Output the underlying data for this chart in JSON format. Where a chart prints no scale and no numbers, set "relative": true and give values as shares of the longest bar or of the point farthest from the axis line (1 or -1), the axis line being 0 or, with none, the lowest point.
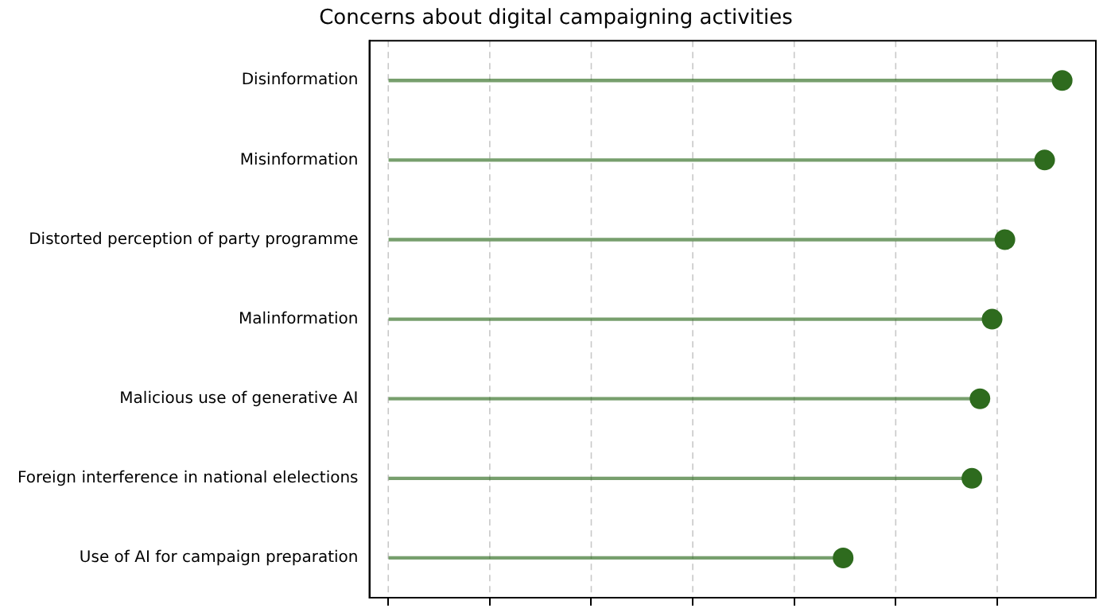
{
  "chart_data": {
    "type": "lollipop",
    "title": "Concerns about digital campaigning activities",
    "relative": true,
    "orientation": "horizontal",
    "grid": "x",
    "marker": "circle",
    "tick_labels": "y",
    "categories": [
      "Disinformation",
      "Misinformation",
      "Distorted perception of party programme",
      "Malinformation",
      "Malicious use of generative AI",
      "Foreign interference in national elelections",
      "Use of AI for campaign preparation"
    ],
    "series": [
      {
        "color": "#2e6b1e",
        "values": [
          1,
          0.974,
          0.915,
          0.896,
          0.878,
          0.866,
          0.675
        ]
      }
    ]
  }
}
